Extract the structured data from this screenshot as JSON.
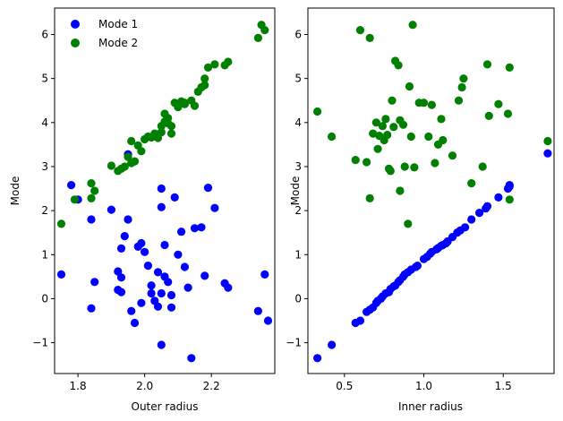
{
  "chart_data": [
    {
      "type": "scatter",
      "xlabel": "Outer radius",
      "ylabel": "Mode",
      "xlim": [
        1.73,
        2.39
      ],
      "ylim": [
        -1.7,
        6.6
      ],
      "xticks": [
        1.8,
        2.0,
        2.2
      ],
      "xtick_labels": [
        "1.8",
        "2.0",
        "2.2"
      ],
      "yticks": [
        -1,
        0,
        1,
        2,
        3,
        4,
        5,
        6
      ],
      "ytick_labels": [
        "−1",
        "0",
        "1",
        "2",
        "3",
        "4",
        "5",
        "6"
      ],
      "grid": false,
      "legend": {
        "placement": "top-left",
        "frame": false
      },
      "series": [
        {
          "name": "Mode 1",
          "color": "#0000ff",
          "points": [
            [
              1.75,
              0.55
            ],
            [
              1.78,
              2.58
            ],
            [
              1.8,
              2.25
            ],
            [
              1.84,
              1.8
            ],
            [
              1.84,
              -0.22
            ],
            [
              1.85,
              0.38
            ],
            [
              1.9,
              2.02
            ],
            [
              1.92,
              0.62
            ],
            [
              1.92,
              0.2
            ],
            [
              1.93,
              0.48
            ],
            [
              1.93,
              1.14
            ],
            [
              1.93,
              0.15
            ],
            [
              1.94,
              1.42
            ],
            [
              1.95,
              1.8
            ],
            [
              1.95,
              3.28
            ],
            [
              1.96,
              -0.28
            ],
            [
              1.97,
              -0.55
            ],
            [
              1.98,
              1.18
            ],
            [
              1.99,
              -0.1
            ],
            [
              1.99,
              1.26
            ],
            [
              2.0,
              1.06
            ],
            [
              2.01,
              0.75
            ],
            [
              2.02,
              0.12
            ],
            [
              2.02,
              0.3
            ],
            [
              2.03,
              -0.05
            ],
            [
              2.04,
              0.6
            ],
            [
              2.04,
              -0.18
            ],
            [
              2.05,
              2.5
            ],
            [
              2.05,
              2.08
            ],
            [
              2.05,
              0.12
            ],
            [
              2.05,
              -1.05
            ],
            [
              2.06,
              0.5
            ],
            [
              2.06,
              1.22
            ],
            [
              2.07,
              0.38
            ],
            [
              2.08,
              -0.2
            ],
            [
              2.08,
              0.08
            ],
            [
              2.09,
              2.3
            ],
            [
              2.1,
              1.0
            ],
            [
              2.11,
              1.52
            ],
            [
              2.12,
              0.72
            ],
            [
              2.13,
              0.25
            ],
            [
              2.14,
              -1.35
            ],
            [
              2.15,
              1.6
            ],
            [
              2.17,
              1.62
            ],
            [
              2.18,
              0.52
            ],
            [
              2.19,
              2.52
            ],
            [
              2.21,
              2.06
            ],
            [
              2.24,
              0.35
            ],
            [
              2.25,
              0.25
            ],
            [
              2.34,
              -0.28
            ],
            [
              2.36,
              0.55
            ],
            [
              2.37,
              -0.5
            ]
          ]
        },
        {
          "name": "Mode 2",
          "color": "#008000",
          "points": [
            [
              1.75,
              1.7
            ],
            [
              1.79,
              2.25
            ],
            [
              1.84,
              2.28
            ],
            [
              1.84,
              2.62
            ],
            [
              1.85,
              2.45
            ],
            [
              1.9,
              3.02
            ],
            [
              1.92,
              2.9
            ],
            [
              1.93,
              2.95
            ],
            [
              1.94,
              3.0
            ],
            [
              1.95,
              3.22
            ],
            [
              1.96,
              3.08
            ],
            [
              1.96,
              3.58
            ],
            [
              1.97,
              3.12
            ],
            [
              1.98,
              3.48
            ],
            [
              1.99,
              3.35
            ],
            [
              2.0,
              3.62
            ],
            [
              2.01,
              3.68
            ],
            [
              2.02,
              3.66
            ],
            [
              2.03,
              3.7
            ],
            [
              2.03,
              3.75
            ],
            [
              2.04,
              3.65
            ],
            [
              2.05,
              3.78
            ],
            [
              2.05,
              3.92
            ],
            [
              2.06,
              4.2
            ],
            [
              2.06,
              4.02
            ],
            [
              2.07,
              3.98
            ],
            [
              2.07,
              4.1
            ],
            [
              2.08,
              3.75
            ],
            [
              2.08,
              3.92
            ],
            [
              2.09,
              4.45
            ],
            [
              2.1,
              4.35
            ],
            [
              2.11,
              4.48
            ],
            [
              2.12,
              4.42
            ],
            [
              2.12,
              4.45
            ],
            [
              2.14,
              4.5
            ],
            [
              2.15,
              4.38
            ],
            [
              2.16,
              4.7
            ],
            [
              2.17,
              4.8
            ],
            [
              2.18,
              5.0
            ],
            [
              2.18,
              4.85
            ],
            [
              2.19,
              5.25
            ],
            [
              2.21,
              5.32
            ],
            [
              2.24,
              5.3
            ],
            [
              2.25,
              5.38
            ],
            [
              2.34,
              5.92
            ],
            [
              2.35,
              6.22
            ],
            [
              2.36,
              6.1
            ]
          ]
        }
      ]
    },
    {
      "type": "scatter",
      "xlabel": "Inner radius",
      "ylabel": "Mode",
      "xlim": [
        0.27,
        1.82
      ],
      "ylim": [
        -1.7,
        6.6
      ],
      "xticks": [
        0.5,
        1.0,
        1.5
      ],
      "xtick_labels": [
        "0.5",
        "1.0",
        "1.5"
      ],
      "yticks": [
        -1,
        0,
        1,
        2,
        3,
        4,
        5,
        6
      ],
      "ytick_labels": [
        "−1",
        "0",
        "1",
        "2",
        "3",
        "4",
        "5",
        "6"
      ],
      "grid": false,
      "series": [
        {
          "name": "Mode 1",
          "color": "#0000ff",
          "points": [
            [
              0.33,
              -1.35
            ],
            [
              0.42,
              -1.05
            ],
            [
              0.57,
              -0.55
            ],
            [
              0.6,
              -0.5
            ],
            [
              0.64,
              -0.3
            ],
            [
              0.66,
              -0.25
            ],
            [
              0.68,
              -0.2
            ],
            [
              0.7,
              -0.1
            ],
            [
              0.71,
              -0.05
            ],
            [
              0.73,
              0.0
            ],
            [
              0.74,
              0.05
            ],
            [
              0.76,
              0.12
            ],
            [
              0.78,
              0.15
            ],
            [
              0.79,
              0.22
            ],
            [
              0.81,
              0.28
            ],
            [
              0.82,
              0.3
            ],
            [
              0.84,
              0.38
            ],
            [
              0.85,
              0.42
            ],
            [
              0.87,
              0.5
            ],
            [
              0.88,
              0.55
            ],
            [
              0.9,
              0.6
            ],
            [
              0.92,
              0.66
            ],
            [
              0.95,
              0.72
            ],
            [
              0.96,
              0.75
            ],
            [
              1.0,
              0.9
            ],
            [
              1.02,
              0.95
            ],
            [
              1.04,
              1.02
            ],
            [
              1.05,
              1.06
            ],
            [
              1.08,
              1.12
            ],
            [
              1.09,
              1.15
            ],
            [
              1.11,
              1.2
            ],
            [
              1.12,
              1.22
            ],
            [
              1.14,
              1.26
            ],
            [
              1.15,
              1.3
            ],
            [
              1.18,
              1.4
            ],
            [
              1.21,
              1.5
            ],
            [
              1.23,
              1.55
            ],
            [
              1.26,
              1.62
            ],
            [
              1.3,
              1.8
            ],
            [
              1.35,
              1.95
            ],
            [
              1.39,
              2.05
            ],
            [
              1.4,
              2.1
            ],
            [
              1.47,
              2.3
            ],
            [
              1.53,
              2.5
            ],
            [
              1.54,
              2.55
            ],
            [
              1.54,
              2.58
            ],
            [
              1.78,
              3.3
            ]
          ]
        },
        {
          "name": "Mode 2",
          "color": "#008000",
          "points": [
            [
              0.33,
              4.25
            ],
            [
              0.42,
              3.68
            ],
            [
              0.57,
              3.15
            ],
            [
              0.6,
              6.1
            ],
            [
              0.64,
              3.1
            ],
            [
              0.66,
              5.92
            ],
            [
              0.66,
              2.28
            ],
            [
              0.68,
              3.75
            ],
            [
              0.7,
              4.0
            ],
            [
              0.71,
              3.4
            ],
            [
              0.72,
              3.7
            ],
            [
              0.74,
              3.92
            ],
            [
              0.75,
              3.6
            ],
            [
              0.76,
              4.08
            ],
            [
              0.77,
              3.72
            ],
            [
              0.78,
              2.95
            ],
            [
              0.79,
              2.9
            ],
            [
              0.8,
              4.5
            ],
            [
              0.81,
              3.9
            ],
            [
              0.82,
              5.4
            ],
            [
              0.84,
              5.3
            ],
            [
              0.85,
              4.05
            ],
            [
              0.85,
              2.45
            ],
            [
              0.87,
              3.95
            ],
            [
              0.88,
              3.0
            ],
            [
              0.9,
              1.7
            ],
            [
              0.91,
              4.82
            ],
            [
              0.92,
              3.68
            ],
            [
              0.93,
              6.22
            ],
            [
              0.94,
              2.98
            ],
            [
              0.97,
              4.45
            ],
            [
              1.0,
              4.45
            ],
            [
              1.03,
              3.68
            ],
            [
              1.05,
              4.4
            ],
            [
              1.07,
              3.08
            ],
            [
              1.09,
              3.5
            ],
            [
              1.11,
              4.08
            ],
            [
              1.12,
              3.6
            ],
            [
              1.18,
              3.25
            ],
            [
              1.22,
              4.5
            ],
            [
              1.24,
              4.8
            ],
            [
              1.25,
              5.0
            ],
            [
              1.3,
              2.62
            ],
            [
              1.37,
              3.0
            ],
            [
              1.4,
              5.32
            ],
            [
              1.41,
              4.15
            ],
            [
              1.47,
              4.42
            ],
            [
              1.53,
              4.2
            ],
            [
              1.54,
              5.25
            ],
            [
              1.54,
              2.25
            ],
            [
              1.78,
              3.58
            ]
          ]
        }
      ]
    }
  ]
}
